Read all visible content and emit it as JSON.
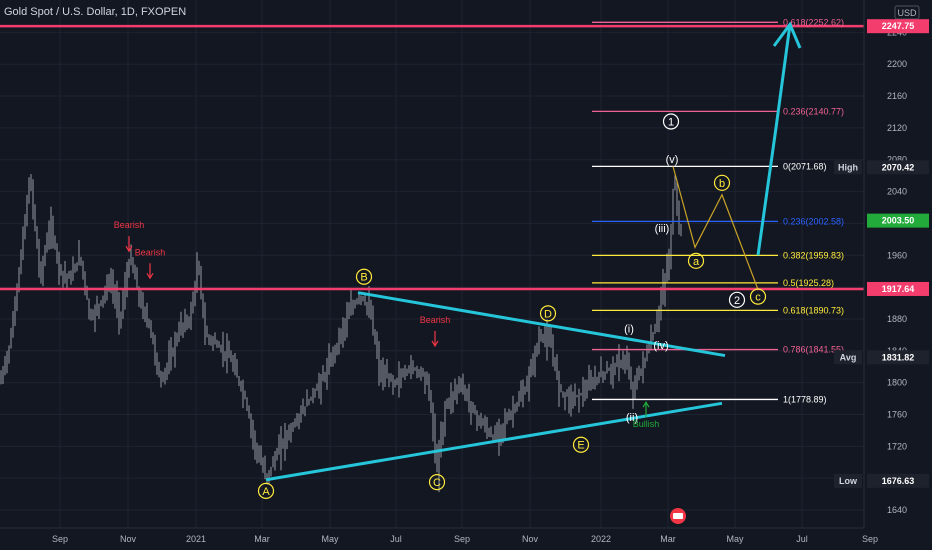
{
  "header": {
    "title": "Gold Spot / U.S. Dollar, 1D, FXOPEN"
  },
  "currency": "USD",
  "chart_data": {
    "type": "line",
    "title": "Gold Spot / U.S. Dollar, 1D, FXOPEN",
    "xlabel": "",
    "ylabel": "",
    "ylim": [
      1616,
      2268
    ],
    "x_ticks": [
      "Sep",
      "Nov",
      "2021",
      "Mar",
      "May",
      "Jul",
      "Sep",
      "Nov",
      "2022",
      "Mar",
      "May",
      "Jul",
      "Sep"
    ],
    "y_ticks": [
      1640,
      1680,
      1720,
      1760,
      1800,
      1840,
      1880,
      1920,
      1960,
      2000,
      2040,
      2080,
      2120,
      2160,
      2200,
      2240
    ],
    "price_path": [
      [
        0,
        1800
      ],
      [
        10,
        1850
      ],
      [
        20,
        1950
      ],
      [
        30,
        2060
      ],
      [
        40,
        1930
      ],
      [
        50,
        2000
      ],
      [
        60,
        1940
      ],
      [
        70,
        1930
      ],
      [
        80,
        1960
      ],
      [
        90,
        1880
      ],
      [
        100,
        1900
      ],
      [
        110,
        1930
      ],
      [
        120,
        1880
      ],
      [
        130,
        1960
      ],
      [
        140,
        1900
      ],
      [
        150,
        1870
      ],
      [
        160,
        1800
      ],
      [
        170,
        1830
      ],
      [
        180,
        1870
      ],
      [
        190,
        1880
      ],
      [
        198,
        1950
      ],
      [
        205,
        1860
      ],
      [
        215,
        1850
      ],
      [
        230,
        1830
      ],
      [
        245,
        1780
      ],
      [
        255,
        1720
      ],
      [
        266,
        1680
      ],
      [
        280,
        1720
      ],
      [
        295,
        1750
      ],
      [
        310,
        1780
      ],
      [
        325,
        1810
      ],
      [
        340,
        1860
      ],
      [
        350,
        1890
      ],
      [
        360,
        1910
      ],
      [
        370,
        1890
      ],
      [
        380,
        1810
      ],
      [
        395,
        1800
      ],
      [
        410,
        1820
      ],
      [
        425,
        1810
      ],
      [
        430,
        1780
      ],
      [
        437,
        1690
      ],
      [
        445,
        1770
      ],
      [
        460,
        1800
      ],
      [
        475,
        1760
      ],
      [
        493,
        1730
      ],
      [
        510,
        1760
      ],
      [
        525,
        1790
      ],
      [
        540,
        1860
      ],
      [
        550,
        1850
      ],
      [
        560,
        1790
      ],
      [
        572,
        1780
      ],
      [
        585,
        1790
      ],
      [
        600,
        1810
      ],
      [
        615,
        1820
      ],
      [
        625,
        1830
      ],
      [
        632,
        1790
      ],
      [
        645,
        1830
      ],
      [
        655,
        1870
      ],
      [
        662,
        1910
      ],
      [
        666,
        1940
      ],
      [
        670,
        1960
      ],
      [
        674,
        2070
      ],
      [
        678,
        2000
      ],
      [
        682,
        1990
      ]
    ],
    "fib_levels": [
      {
        "label": "0.618(2252.62)",
        "price": 2252.62,
        "color": "#f06292"
      },
      {
        "label": "0.236(2140.77)",
        "price": 2140.77,
        "color": "#f06292"
      },
      {
        "label": "0(2071.68)",
        "price": 2071.68,
        "color": "#ffffff"
      },
      {
        "label": "0.236(2002.58)",
        "price": 2002.58,
        "color": "#2962ff"
      },
      {
        "label": "0.382(1959.83)",
        "price": 1959.83,
        "color": "#ffeb3b"
      },
      {
        "label": "0.5(1925.28)",
        "price": 1925.28,
        "color": "#ffeb3b"
      },
      {
        "label": "0.618(1890.73)",
        "price": 1890.73,
        "color": "#ffeb3b"
      },
      {
        "label": "0.786(1841.55)",
        "price": 1841.55,
        "color": "#f06292"
      },
      {
        "label": "1(1778.89)",
        "price": 1778.89,
        "color": "#ffffff"
      }
    ],
    "horizontal_levels": [
      2247.75,
      1917.64
    ],
    "price_tags": [
      {
        "label": "2247.75",
        "price": 2247.75,
        "bg": "#f23d6d",
        "fg": "#ffffff",
        "side": ""
      },
      {
        "label": "2070.42",
        "price": 2070.42,
        "bg": "#1e222d",
        "fg": "#ffffff",
        "side": "High"
      },
      {
        "label": "2003.50",
        "price": 2003.5,
        "bg": "#22ab3b",
        "fg": "#ffffff",
        "side": ""
      },
      {
        "label": "1917.64",
        "price": 1917.64,
        "bg": "#f23d6d",
        "fg": "#ffffff",
        "side": ""
      },
      {
        "label": "1831.82",
        "price": 1831.82,
        "bg": "#1e222d",
        "fg": "#ffffff",
        "side": "Avg"
      },
      {
        "label": "1676.63",
        "price": 1676.63,
        "bg": "#1e222d",
        "fg": "#ffffff",
        "side": "Low"
      }
    ],
    "wave_labels": [
      {
        "text": "A",
        "price": 1664,
        "circled": true,
        "color": "#ffeb3b"
      },
      {
        "text": "B",
        "price": 1933,
        "circled": true,
        "color": "#ffeb3b"
      },
      {
        "text": "C",
        "price": 1675,
        "circled": true,
        "color": "#ffeb3b"
      },
      {
        "text": "D",
        "price": 1887,
        "circled": true,
        "color": "#ffeb3b"
      },
      {
        "text": "E",
        "price": 1722,
        "circled": true,
        "color": "#ffeb3b"
      },
      {
        "text": "1",
        "price": 2128,
        "circled": true,
        "color": "#ffffff"
      },
      {
        "text": "2",
        "price": 1904,
        "circled": true,
        "color": "#ffffff"
      },
      {
        "text": "a",
        "price": 1953,
        "circled": true,
        "color": "#ffeb3b"
      },
      {
        "text": "b",
        "price": 2051,
        "circled": true,
        "color": "#ffeb3b"
      },
      {
        "text": "c",
        "price": 1908,
        "circled": true,
        "color": "#ffeb3b"
      },
      {
        "text": "(v)",
        "price": 2081,
        "circled": false,
        "color": "#ffffff"
      },
      {
        "text": "(iii)",
        "price": 1994,
        "circled": false,
        "color": "#ffffff"
      },
      {
        "text": "(i)",
        "price": 1868,
        "circled": false,
        "color": "#ffffff"
      },
      {
        "text": "(iv)",
        "price": 1847,
        "circled": false,
        "color": "#ffffff"
      },
      {
        "text": "(ii)",
        "price": 1757,
        "circled": false,
        "color": "#ffffff"
      }
    ],
    "signal_labels": [
      {
        "text": "Bearish",
        "price": 1994,
        "color": "#f23645",
        "dir": "down"
      },
      {
        "text": "Bearish",
        "price": 1960,
        "color": "#f23645",
        "dir": "down"
      },
      {
        "text": "Bearish",
        "price": 1875,
        "color": "#f23645",
        "dir": "down"
      },
      {
        "text": "Bullish",
        "price": 1744,
        "color": "#22ab3b",
        "dir": "up"
      }
    ],
    "trendlines": [
      {
        "name": "triangle-upper",
        "from": [
          1913
        ],
        "to": [
          1834
        ]
      },
      {
        "name": "triangle-lower",
        "from": [
          1678
        ],
        "to": [
          1774
        ]
      }
    ],
    "projection": {
      "path": [
        1960,
        2120,
        2250
      ],
      "color": "#26c6da"
    },
    "abc_path": {
      "prices": [
        2071.68,
        1970,
        2036,
        1917
      ],
      "color": "#c9a227"
    }
  }
}
